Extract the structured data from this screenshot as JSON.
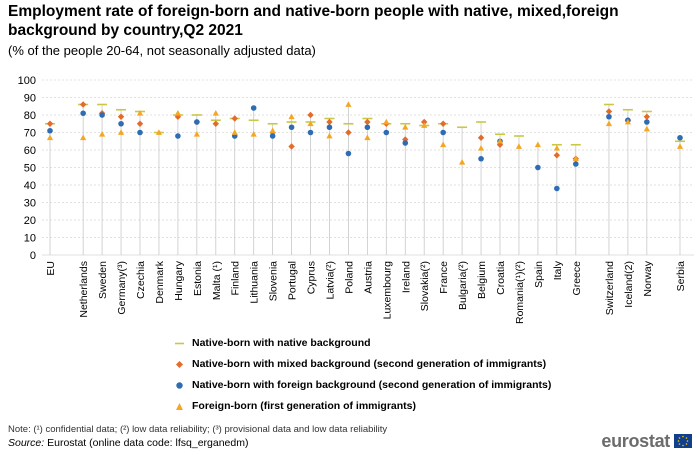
{
  "title": "Employment rate of foreign-born and native-born people with native, mixed,foreign background by country,Q2 2021",
  "subtitle": "(% of the people 20-64, not seasonally adjusted data)",
  "colors": {
    "native": "#c8c845",
    "mixed": "#e36b2b",
    "foreign_bg": "#2e6db4",
    "foreign_born": "#f5a623",
    "grid": "#d9d9d9",
    "stem": "#c8c8c8"
  },
  "legend": [
    {
      "key": "native",
      "shape": "dash",
      "label": "Native-born with native background"
    },
    {
      "key": "mixed",
      "shape": "diamond",
      "label": "Native-born with mixed background (second generation of immigrants)"
    },
    {
      "key": "foreign_bg",
      "shape": "circle",
      "label": "Native-born with foreign background (second generation of immigrants)"
    },
    {
      "key": "foreign_born",
      "shape": "triangle",
      "label": "Foreign-born (first generation of immigrants)"
    }
  ],
  "note": "Note: (¹) confidential data; (²) low data reliability; (³) provisional data and low data reliability",
  "source": {
    "label": "Source:",
    "text": " Eurostat (online data code: lfsq_erganedm)"
  },
  "logo": "eurostat",
  "chart_data": {
    "type": "scatter",
    "ylim": [
      0,
      100
    ],
    "yticks": [
      0,
      10,
      20,
      30,
      40,
      50,
      60,
      70,
      80,
      90,
      100
    ],
    "grid": true,
    "categories": [
      "EU",
      "Netherlands",
      "Sweden",
      "Germany(³)",
      "Czechia",
      "Denmark",
      "Hungary",
      "Estonia",
      "Malta (¹)",
      "Finland",
      "Lithuania",
      "Slovenia",
      "Portugal",
      "Cyprus",
      "Latvia(²)",
      "Poland",
      "Austria",
      "Luxembourg",
      "Ireland",
      "Slovakia(²)",
      "France",
      "Bulgaria(²)",
      "Belgium",
      "Croatia",
      "Romania(¹)(²)",
      "Spain",
      "Italy",
      "Greece",
      "Switzerland",
      "Iceland(2)",
      "Norway",
      "Serbia"
    ],
    "gap_after": [
      "EU",
      "Greece",
      "Norway"
    ],
    "series": [
      {
        "name": "Native-born with native background",
        "key": "native",
        "values": [
          75,
          86,
          86,
          83,
          82,
          70,
          80,
          80,
          77,
          78,
          77,
          75,
          76,
          76,
          78,
          75,
          78,
          75,
          75,
          74,
          75,
          73,
          76,
          69,
          68,
          null,
          63,
          63,
          86,
          83,
          82,
          65
        ]
      },
      {
        "name": "Native-born with mixed background (second generation of immigrants)",
        "key": "mixed",
        "values": [
          75,
          86,
          81,
          79,
          75,
          null,
          79,
          76,
          75,
          78,
          null,
          70,
          62,
          80,
          76,
          70,
          76,
          75,
          66,
          76,
          75,
          null,
          67,
          63,
          null,
          null,
          57,
          55,
          82,
          77,
          79,
          null
        ]
      },
      {
        "name": "Native-born with foreign background (second generation of immigrants)",
        "key": "foreign_bg",
        "values": [
          71,
          81,
          80,
          75,
          70,
          null,
          68,
          76,
          null,
          68,
          84,
          68,
          73,
          70,
          73,
          58,
          73,
          70,
          64,
          null,
          70,
          null,
          55,
          65,
          null,
          50,
          38,
          52,
          79,
          77,
          76,
          67
        ]
      },
      {
        "name": "Foreign-born (first generation of immigrants)",
        "key": "foreign_born",
        "values": [
          67,
          67,
          69,
          70,
          81,
          70,
          81,
          69,
          81,
          70,
          69,
          71,
          79,
          75,
          68,
          86,
          67,
          76,
          73,
          74,
          63,
          53,
          61,
          65,
          62,
          63,
          61,
          55,
          75,
          76,
          72,
          62
        ]
      }
    ]
  }
}
